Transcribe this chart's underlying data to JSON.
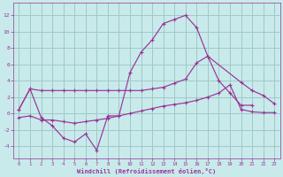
{
  "background_color": "#c8eaea",
  "grid_color": "#a0c8c8",
  "line_color": "#993399",
  "xlabel": "Windchill (Refroidissement éolien,°C)",
  "xlim": [
    -0.5,
    23.5
  ],
  "ylim": [
    -5.5,
    13.5
  ],
  "yticks": [
    -4,
    -2,
    0,
    2,
    4,
    6,
    8,
    10,
    12
  ],
  "xticks": [
    0,
    1,
    2,
    3,
    4,
    5,
    6,
    7,
    8,
    9,
    10,
    11,
    12,
    13,
    14,
    15,
    16,
    17,
    18,
    19,
    20,
    21,
    22,
    23
  ],
  "line1_x": [
    0,
    1,
    2,
    3,
    4,
    5,
    6,
    7,
    8,
    9,
    10,
    11,
    12,
    13,
    14,
    15,
    16,
    17,
    18,
    19,
    20,
    21
  ],
  "line1_y": [
    0.5,
    3.0,
    -0.5,
    -1.5,
    -3.0,
    -3.5,
    -2.5,
    -4.5,
    -0.3,
    -0.3,
    5.0,
    7.5,
    9.0,
    11.0,
    11.5,
    12.0,
    10.5,
    7.0,
    4.0,
    2.5,
    1.0,
    1.0
  ],
  "line2_x": [
    0,
    1,
    2,
    3,
    4,
    5,
    6,
    7,
    8,
    9,
    10,
    11,
    12,
    13,
    14,
    15,
    16,
    17,
    20,
    21,
    22,
    23
  ],
  "line2_y": [
    0.5,
    3.0,
    2.8,
    2.8,
    2.8,
    2.8,
    2.8,
    2.8,
    2.8,
    2.8,
    2.8,
    2.8,
    3.0,
    3.2,
    3.7,
    4.2,
    6.2,
    7.0,
    3.8,
    2.8,
    2.2,
    1.2
  ],
  "line3_x": [
    0,
    1,
    2,
    3,
    4,
    5,
    6,
    7,
    8,
    9,
    10,
    11,
    12,
    13,
    14,
    15,
    16,
    17,
    18,
    19,
    20,
    21,
    22,
    23
  ],
  "line3_y": [
    -0.5,
    -0.3,
    -0.8,
    -0.8,
    -1.0,
    -1.2,
    -1.0,
    -0.8,
    -0.6,
    -0.3,
    0.0,
    0.3,
    0.6,
    0.9,
    1.1,
    1.3,
    1.6,
    2.0,
    2.5,
    3.5,
    0.5,
    0.2,
    0.1,
    0.1
  ]
}
